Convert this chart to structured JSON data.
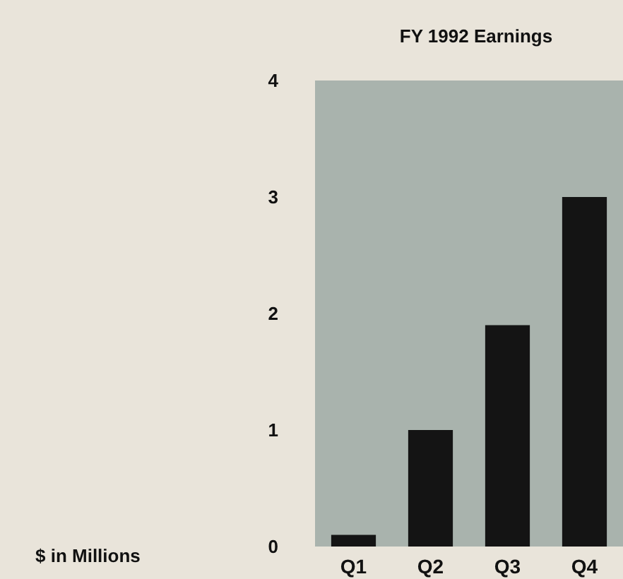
{
  "chart_data": {
    "type": "bar",
    "title": "FY 1992 Earnings",
    "annotations": [
      "$ in Millions"
    ],
    "categories": [
      "Q1",
      "Q2",
      "Q3",
      "Q4"
    ],
    "values": [
      0.1,
      1.0,
      1.9,
      3.0
    ],
    "color": "#141414",
    "ylim": [
      0,
      4
    ],
    "yticks": [
      0,
      1,
      2,
      3,
      4
    ],
    "grid": false
  }
}
